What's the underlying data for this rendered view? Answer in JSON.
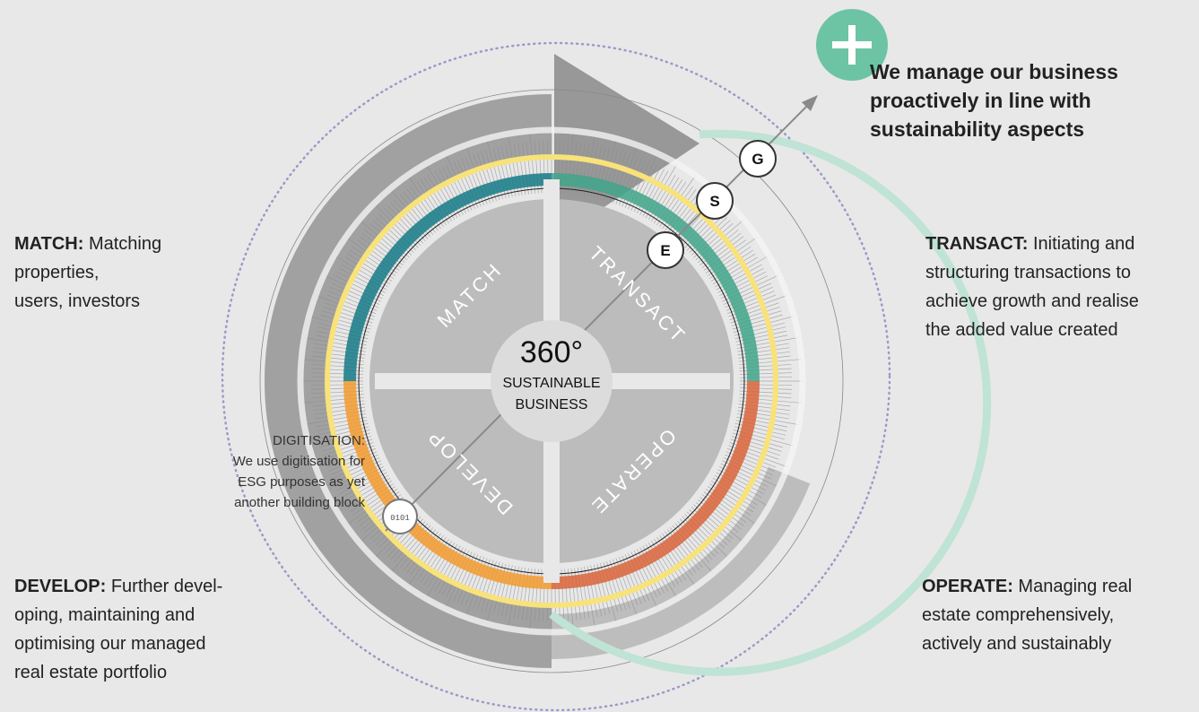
{
  "headline": {
    "lines": [
      "We manage our business",
      "proactively in line with",
      "sustainability aspects"
    ]
  },
  "center": {
    "title": "360°",
    "lines": [
      "SUSTAINABLE",
      "BUSINESS"
    ]
  },
  "quadrants": [
    "MATCH",
    "TRANSACT",
    "OPERATE",
    "DEVELOP"
  ],
  "esg": [
    "E",
    "S",
    "G"
  ],
  "pillars": [
    {
      "label": "MATCH:",
      "lines": [
        "Matching",
        "properties,",
        "users, investors"
      ]
    },
    {
      "label": "TRANSACT:",
      "lines": [
        "Initiating and",
        "structuring transactions to",
        "achieve growth and realise",
        "the added value created"
      ]
    },
    {
      "label": "OPERATE:",
      "lines": [
        "Managing real",
        "estate comprehensively,",
        "actively and sustainably"
      ]
    },
    {
      "label": "DEVELOP:",
      "lines": [
        "Further devel-",
        "oping, maintaining and",
        "optimising our managed",
        "real estate portfolio"
      ]
    }
  ],
  "digitisation": {
    "lines": [
      "DIGITISATION:",
      "We use digitisation for",
      "ESG purposes as yet",
      "another building block"
    ]
  }
}
